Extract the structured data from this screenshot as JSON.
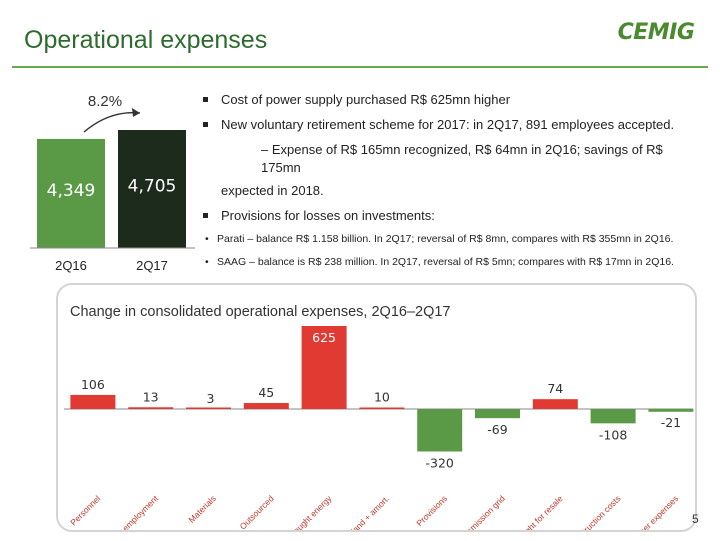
{
  "header": {
    "title": "Operational expenses",
    "logo_text": "CEMIG"
  },
  "summary_chart": {
    "type": "bar",
    "categories": [
      "2Q16",
      "2Q17"
    ],
    "values": [
      4349,
      4705
    ],
    "value_labels": [
      "4,349",
      "4,705"
    ],
    "growth_label": "8.2%",
    "colors": [
      "#5a9a46",
      "#1c2b1c"
    ]
  },
  "bullets": {
    "b1": "Cost of power supply purchased R$ 625mn higher",
    "b2": "New voluntary retirement scheme for 2017: in 2Q17, 891 employees accepted.",
    "b2_sub_line1": "– Expense of R$ 165mn recognized, R$ 64mn in 2Q16; savings of R$ 175mn",
    "b2_sub_line2": "expected in 2018.",
    "b3": "Provisions for losses on investments:",
    "b3_sub1": "Parati – balance R$ 1.158 billion. In 2Q17; reversal of R$ 8mn, compares with R$ 355mn in 2Q16.",
    "b3_sub2": "SAAG – balance is R$ 238 million. In 2Q17, reversal of R$ 5mn; compares with R$ 17mn in 2Q16."
  },
  "chart_data": {
    "type": "bar",
    "title": "Change in consolidated operational expenses, 2Q16–2Q17",
    "categories": [
      "Personnel",
      "Post-employment",
      "Materials",
      "Outsourced",
      "Bought energy",
      "Dep'and + amort.",
      "Provisions",
      "Transmission grid",
      "Gas bought for resale",
      "Construction costs",
      "Other expenses"
    ],
    "values": [
      106,
      13,
      3,
      45,
      625,
      10,
      -320,
      -69,
      74,
      -108,
      -21
    ],
    "ylim": [
      -320,
      625
    ],
    "grid": false,
    "colors": {
      "increase": "#e03a33",
      "decrease": "#5a9a46"
    }
  },
  "footer": {
    "page_number": "5"
  }
}
